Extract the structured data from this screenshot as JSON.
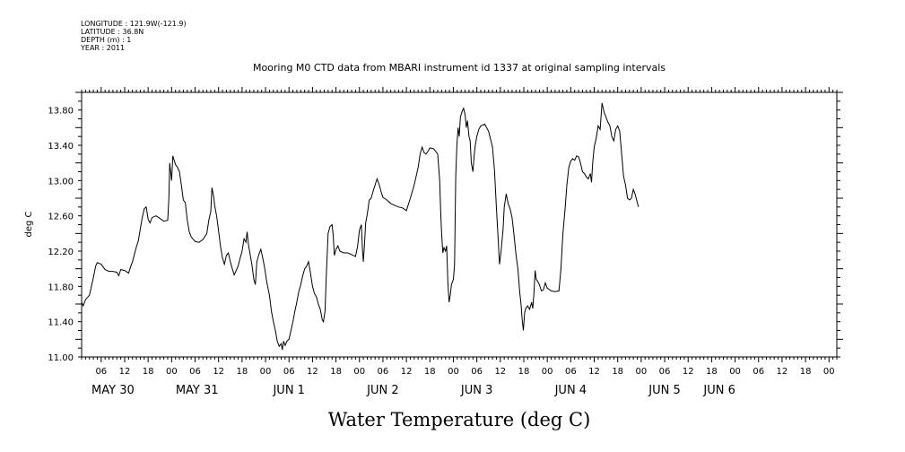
{
  "metadata": {
    "longitude": "LONGITUDE : 121.9W(-121.9)",
    "latitude": "LATITUDE : 36.8N",
    "depth": "DEPTH (m) : 1",
    "year": "YEAR : 2011"
  },
  "chart_data": {
    "type": "line",
    "title": "Mooring M0 CTD data from MBARI instrument id 1337 at original sampling intervals",
    "bottom_title": "Water Temperature (deg C)",
    "ylabel": "deg C",
    "xlim": [
      1,
      194
    ],
    "ylim": [
      11.0,
      14.0
    ],
    "y_ticks": [
      "11.00",
      "11.40",
      "11.80",
      "12.20",
      "12.60",
      "13.00",
      "13.40",
      "13.80"
    ],
    "y_tick_values": [
      11.0,
      11.4,
      11.8,
      12.2,
      12.6,
      13.0,
      13.4,
      13.8
    ],
    "x_hour_ticks": [
      {
        "x": 6,
        "label": "06"
      },
      {
        "x": 12,
        "label": "12"
      },
      {
        "x": 18,
        "label": "18"
      },
      {
        "x": 24,
        "label": "00"
      },
      {
        "x": 30,
        "label": "06"
      },
      {
        "x": 36,
        "label": "12"
      },
      {
        "x": 42,
        "label": "18"
      },
      {
        "x": 48,
        "label": "00"
      },
      {
        "x": 54,
        "label": "06"
      },
      {
        "x": 60,
        "label": "12"
      },
      {
        "x": 66,
        "label": "18"
      },
      {
        "x": 72,
        "label": "00"
      },
      {
        "x": 78,
        "label": "06"
      },
      {
        "x": 84,
        "label": "12"
      },
      {
        "x": 90,
        "label": "18"
      },
      {
        "x": 96,
        "label": "00"
      },
      {
        "x": 102,
        "label": "06"
      },
      {
        "x": 108,
        "label": "12"
      },
      {
        "x": 114,
        "label": "18"
      },
      {
        "x": 120,
        "label": "00"
      },
      {
        "x": 126,
        "label": "06"
      },
      {
        "x": 132,
        "label": "12"
      },
      {
        "x": 138,
        "label": "18"
      },
      {
        "x": 144,
        "label": "00"
      },
      {
        "x": 150,
        "label": "06"
      },
      {
        "x": 156,
        "label": "12"
      },
      {
        "x": 162,
        "label": "18"
      },
      {
        "x": 168,
        "label": "00"
      },
      {
        "x": 174,
        "label": "06"
      },
      {
        "x": 180,
        "label": "12"
      },
      {
        "x": 186,
        "label": "18"
      },
      {
        "x": 192,
        "label": "00"
      }
    ],
    "x_day_labels": [
      {
        "x": 9,
        "label": "MAY 30"
      },
      {
        "x": 30.5,
        "label": "MAY 31"
      },
      {
        "x": 54,
        "label": "JUN  1"
      },
      {
        "x": 78,
        "label": "JUN  2"
      },
      {
        "x": 102,
        "label": "JUN  3"
      },
      {
        "x": 126,
        "label": "JUN  4"
      },
      {
        "x": 150,
        "label": "JUN  5"
      },
      {
        "x": 164,
        "label": "JUN  6"
      }
    ],
    "series": [
      {
        "points": [
          [
            1,
            11.62
          ],
          [
            1.4,
            11.58
          ],
          [
            2,
            11.65
          ],
          [
            3,
            11.7
          ],
          [
            4,
            11.9
          ],
          [
            4.6,
            12.03
          ],
          [
            5,
            12.07
          ],
          [
            6,
            12.05
          ],
          [
            7,
            11.99
          ],
          [
            8,
            11.97
          ],
          [
            9,
            11.97
          ],
          [
            10,
            11.96
          ],
          [
            10.5,
            11.92
          ],
          [
            11,
            11.99
          ],
          [
            12,
            11.98
          ],
          [
            13,
            11.95
          ],
          [
            13.5,
            12.02
          ],
          [
            14,
            12.08
          ],
          [
            15,
            12.25
          ],
          [
            15.5,
            12.32
          ],
          [
            16,
            12.45
          ],
          [
            16.5,
            12.58
          ],
          [
            17,
            12.68
          ],
          [
            17.5,
            12.7
          ],
          [
            18,
            12.56
          ],
          [
            18.5,
            12.52
          ],
          [
            19,
            12.58
          ],
          [
            20,
            12.6
          ],
          [
            21,
            12.57
          ],
          [
            22,
            12.54
          ],
          [
            23,
            12.55
          ],
          [
            23.3,
            12.8
          ],
          [
            23.5,
            13.2
          ],
          [
            24,
            13.0
          ],
          [
            24.3,
            13.28
          ],
          [
            25,
            13.18
          ],
          [
            25.5,
            13.15
          ],
          [
            26,
            13.1
          ],
          [
            26.5,
            12.95
          ],
          [
            27,
            12.78
          ],
          [
            27.5,
            12.75
          ],
          [
            28,
            12.55
          ],
          [
            28.5,
            12.42
          ],
          [
            29,
            12.36
          ],
          [
            30,
            12.31
          ],
          [
            31,
            12.3
          ],
          [
            32,
            12.33
          ],
          [
            33,
            12.4
          ],
          [
            33.5,
            12.55
          ],
          [
            34,
            12.65
          ],
          [
            34.3,
            12.92
          ],
          [
            34.8,
            12.8
          ],
          [
            35,
            12.72
          ],
          [
            35.5,
            12.6
          ],
          [
            36,
            12.43
          ],
          [
            36.5,
            12.25
          ],
          [
            37,
            12.12
          ],
          [
            37.5,
            12.05
          ],
          [
            38,
            12.15
          ],
          [
            38.5,
            12.18
          ],
          [
            39,
            12.08
          ],
          [
            39.5,
            12.0
          ],
          [
            40,
            11.93
          ],
          [
            40.5,
            11.98
          ],
          [
            41,
            12.03
          ],
          [
            41.5,
            12.12
          ],
          [
            42,
            12.2
          ],
          [
            42.5,
            12.34
          ],
          [
            43,
            12.3
          ],
          [
            43.3,
            12.42
          ],
          [
            43.6,
            12.28
          ],
          [
            44,
            12.18
          ],
          [
            44.5,
            12.05
          ],
          [
            45,
            11.88
          ],
          [
            45.4,
            11.82
          ],
          [
            45.8,
            12.08
          ],
          [
            46.3,
            12.16
          ],
          [
            46.8,
            12.22
          ],
          [
            47.3,
            12.12
          ],
          [
            47.8,
            12.0
          ],
          [
            48.3,
            11.85
          ],
          [
            49,
            11.7
          ],
          [
            49.5,
            11.52
          ],
          [
            50,
            11.4
          ],
          [
            50.5,
            11.3
          ],
          [
            51,
            11.18
          ],
          [
            51.5,
            11.12
          ],
          [
            52,
            11.15
          ],
          [
            52.3,
            11.08
          ],
          [
            52.6,
            11.18
          ],
          [
            53,
            11.13
          ],
          [
            53.5,
            11.18
          ],
          [
            54,
            11.2
          ],
          [
            54.5,
            11.3
          ],
          [
            55,
            11.4
          ],
          [
            55.5,
            11.52
          ],
          [
            56,
            11.62
          ],
          [
            56.5,
            11.74
          ],
          [
            57,
            11.82
          ],
          [
            57.5,
            11.92
          ],
          [
            58,
            12.0
          ],
          [
            58.5,
            12.03
          ],
          [
            59,
            12.08
          ],
          [
            59.5,
            11.95
          ],
          [
            60,
            11.8
          ],
          [
            60.5,
            11.72
          ],
          [
            61,
            11.68
          ],
          [
            61.5,
            11.6
          ],
          [
            62,
            11.54
          ],
          [
            62.5,
            11.42
          ],
          [
            62.8,
            11.4
          ],
          [
            63.2,
            11.52
          ],
          [
            63.5,
            11.9
          ],
          [
            64,
            12.4
          ],
          [
            64.5,
            12.48
          ],
          [
            65,
            12.5
          ],
          [
            65.3,
            12.38
          ],
          [
            65.6,
            12.15
          ],
          [
            66,
            12.22
          ],
          [
            66.5,
            12.26
          ],
          [
            67,
            12.2
          ],
          [
            68,
            12.18
          ],
          [
            69,
            12.18
          ],
          [
            70,
            12.16
          ],
          [
            71,
            12.14
          ],
          [
            71.5,
            12.25
          ],
          [
            72,
            12.44
          ],
          [
            72.5,
            12.5
          ],
          [
            72.8,
            12.2
          ],
          [
            73,
            12.08
          ],
          [
            73.3,
            12.28
          ],
          [
            73.6,
            12.52
          ],
          [
            74,
            12.62
          ],
          [
            74.5,
            12.78
          ],
          [
            75,
            12.8
          ],
          [
            75.5,
            12.88
          ],
          [
            76,
            12.95
          ],
          [
            76.5,
            13.02
          ],
          [
            77,
            12.96
          ],
          [
            77.5,
            12.88
          ],
          [
            78,
            12.81
          ],
          [
            79,
            12.78
          ],
          [
            80,
            12.74
          ],
          [
            81,
            12.72
          ],
          [
            82,
            12.7
          ],
          [
            83,
            12.69
          ],
          [
            84,
            12.66
          ],
          [
            85,
            12.8
          ],
          [
            86,
            12.95
          ],
          [
            87,
            13.15
          ],
          [
            87.5,
            13.3
          ],
          [
            88,
            13.38
          ],
          [
            88.5,
            13.32
          ],
          [
            89,
            13.3
          ],
          [
            89.5,
            13.33
          ],
          [
            90,
            13.37
          ],
          [
            91,
            13.36
          ],
          [
            92,
            13.3
          ],
          [
            92.5,
            13.0
          ],
          [
            92.8,
            12.6
          ],
          [
            93,
            12.4
          ],
          [
            93.3,
            12.18
          ],
          [
            93.6,
            12.24
          ],
          [
            94,
            12.2
          ],
          [
            94.3,
            12.26
          ],
          [
            94.6,
            11.85
          ],
          [
            94.9,
            11.62
          ],
          [
            95.2,
            11.7
          ],
          [
            95.5,
            11.82
          ],
          [
            96,
            11.88
          ],
          [
            96.3,
            12.05
          ],
          [
            96.6,
            13.05
          ],
          [
            96.9,
            13.4
          ],
          [
            97.2,
            13.6
          ],
          [
            97.5,
            13.5
          ],
          [
            97.8,
            13.72
          ],
          [
            98.2,
            13.78
          ],
          [
            98.6,
            13.82
          ],
          [
            99,
            13.75
          ],
          [
            99.3,
            13.6
          ],
          [
            99.6,
            13.68
          ],
          [
            100,
            13.5
          ],
          [
            100.3,
            13.45
          ],
          [
            100.6,
            13.2
          ],
          [
            101,
            13.1
          ],
          [
            101.3,
            13.28
          ],
          [
            101.6,
            13.4
          ],
          [
            102,
            13.5
          ],
          [
            102.5,
            13.58
          ],
          [
            103,
            13.62
          ],
          [
            104,
            13.64
          ],
          [
            105,
            13.56
          ],
          [
            106,
            13.38
          ],
          [
            106.5,
            13.12
          ],
          [
            107,
            12.7
          ],
          [
            107.5,
            12.3
          ],
          [
            107.8,
            12.05
          ],
          [
            108.2,
            12.2
          ],
          [
            108.7,
            12.45
          ],
          [
            109,
            12.7
          ],
          [
            109.5,
            12.85
          ],
          [
            110,
            12.74
          ],
          [
            110.5,
            12.68
          ],
          [
            111,
            12.58
          ],
          [
            111.5,
            12.38
          ],
          [
            112,
            12.16
          ],
          [
            112.5,
            12.0
          ],
          [
            113,
            11.72
          ],
          [
            113.3,
            11.6
          ],
          [
            113.6,
            11.42
          ],
          [
            113.9,
            11.3
          ],
          [
            114.2,
            11.5
          ],
          [
            114.5,
            11.55
          ],
          [
            115,
            11.58
          ],
          [
            115.5,
            11.54
          ],
          [
            116,
            11.62
          ],
          [
            116.3,
            11.55
          ],
          [
            116.6,
            11.72
          ],
          [
            116.9,
            11.98
          ],
          [
            117.2,
            11.88
          ],
          [
            117.5,
            11.86
          ],
          [
            118,
            11.82
          ],
          [
            118.5,
            11.75
          ],
          [
            119,
            11.76
          ],
          [
            119.5,
            11.84
          ],
          [
            120,
            11.78
          ],
          [
            121,
            11.75
          ],
          [
            122,
            11.74
          ],
          [
            123,
            11.75
          ],
          [
            123.5,
            12.0
          ],
          [
            124,
            12.4
          ],
          [
            124.5,
            12.65
          ],
          [
            125,
            12.95
          ],
          [
            125.5,
            13.15
          ],
          [
            126,
            13.22
          ],
          [
            126.5,
            13.25
          ],
          [
            127,
            13.23
          ],
          [
            127.5,
            13.28
          ],
          [
            128,
            13.27
          ],
          [
            128.5,
            13.2
          ],
          [
            129,
            13.1
          ],
          [
            129.5,
            13.08
          ],
          [
            130,
            13.04
          ],
          [
            130.5,
            13.02
          ],
          [
            131,
            13.08
          ],
          [
            131.3,
            12.98
          ],
          [
            131.6,
            13.2
          ],
          [
            132,
            13.38
          ],
          [
            132.5,
            13.48
          ],
          [
            133,
            13.62
          ],
          [
            133.5,
            13.58
          ],
          [
            134,
            13.88
          ],
          [
            134.5,
            13.78
          ],
          [
            135,
            13.72
          ],
          [
            135.5,
            13.66
          ],
          [
            136,
            13.62
          ],
          [
            136.5,
            13.5
          ],
          [
            137,
            13.45
          ],
          [
            137.5,
            13.58
          ],
          [
            138,
            13.62
          ],
          [
            138.5,
            13.56
          ],
          [
            139,
            13.3
          ],
          [
            139.5,
            13.05
          ],
          [
            140,
            12.95
          ],
          [
            140.5,
            12.8
          ],
          [
            141,
            12.78
          ],
          [
            141.5,
            12.8
          ],
          [
            142,
            12.9
          ],
          [
            142.5,
            12.84
          ],
          [
            143,
            12.75
          ],
          [
            143.3,
            12.7
          ]
        ]
      }
    ]
  }
}
